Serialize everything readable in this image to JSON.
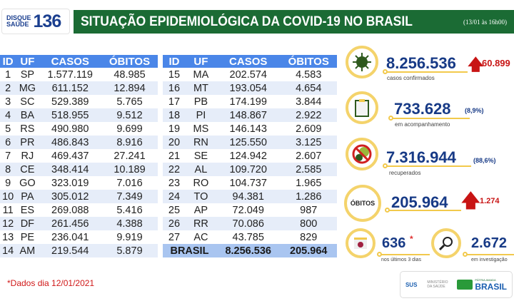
{
  "logo": {
    "line1": "DISQUE",
    "line2": "SAÚDE",
    "number": "136"
  },
  "header": {
    "title": "SITUAÇÃO EPIDEMIOLÓGICA DA COVID-19 NO BRASIL",
    "date": "(13/01 às 16h00)"
  },
  "table": {
    "columns": [
      "ID",
      "UF",
      "CASOS",
      "ÓBITOS"
    ],
    "rows_left": [
      [
        "1",
        "SP",
        "1.577.119",
        "48.985"
      ],
      [
        "2",
        "MG",
        "611.152",
        "12.894"
      ],
      [
        "3",
        "SC",
        "529.389",
        "5.765"
      ],
      [
        "4",
        "BA",
        "518.955",
        "9.512"
      ],
      [
        "5",
        "RS",
        "490.980",
        "9.699"
      ],
      [
        "6",
        "PR",
        "486.843",
        "8.916"
      ],
      [
        "7",
        "RJ",
        "469.437",
        "27.241"
      ],
      [
        "8",
        "CE",
        "348.414",
        "10.189"
      ],
      [
        "9",
        "GO",
        "323.019",
        "7.016"
      ],
      [
        "10",
        "PA",
        "305.012",
        "7.349"
      ],
      [
        "11",
        "ES",
        "269.088",
        "5.416"
      ],
      [
        "12",
        "DF",
        "261.456",
        "4.388"
      ],
      [
        "13",
        "PE",
        "236.041",
        "9.919"
      ],
      [
        "14",
        "AM",
        "219.544",
        "5.879"
      ]
    ],
    "rows_right": [
      [
        "15",
        "MA",
        "202.574",
        "4.583"
      ],
      [
        "16",
        "MT",
        "193.054",
        "4.654"
      ],
      [
        "17",
        "PB",
        "174.199",
        "3.844"
      ],
      [
        "18",
        "PI",
        "148.867",
        "2.922"
      ],
      [
        "19",
        "MS",
        "146.143",
        "2.609"
      ],
      [
        "20",
        "RN",
        "125.550",
        "3.125"
      ],
      [
        "21",
        "SE",
        "124.942",
        "2.607"
      ],
      [
        "22",
        "AL",
        "109.720",
        "2.585"
      ],
      [
        "23",
        "RO",
        "104.737",
        "1.965"
      ],
      [
        "24",
        "TO",
        "94.381",
        "1.286"
      ],
      [
        "25",
        "AP",
        "72.049",
        "987"
      ],
      [
        "26",
        "RR",
        "70.086",
        "800"
      ],
      [
        "27",
        "AC",
        "43.785",
        "829"
      ]
    ],
    "total": {
      "label": "BRASIL",
      "casos": "8.256.536",
      "obitos": "205.964"
    }
  },
  "stats": {
    "confirmed": {
      "value": "8.256.536",
      "increase": "60.899",
      "label": "casos confirmados",
      "icon": "virus-icon"
    },
    "monitoring": {
      "value": "733.628",
      "pct": "(8,9%)",
      "label": "em acompanhamento",
      "icon": "clipboard-icon"
    },
    "recovered": {
      "value": "7.316.944",
      "pct": "(88,6%)",
      "label": "recuperados",
      "icon": "no-virus-icon"
    },
    "deaths": {
      "badge": "ÓBITOS",
      "value": "205.964",
      "increase": "1.274"
    },
    "recent": {
      "value": "636",
      "mark": "*",
      "label": "nos últimos 3 dias",
      "icon": "calendar-icon"
    },
    "investigation": {
      "value": "2.672",
      "label": "em investigação",
      "icon": "magnifier-icon"
    }
  },
  "footnote": "*Dados dia 12/01/2021",
  "gov": {
    "sus": "SUS",
    "ministry": "MINISTÉRIO DA SAÚDE",
    "brand_small": "PÁTRIA AMADA",
    "brand": "BRASIL"
  },
  "colors": {
    "green": "#1b6b34",
    "blue": "#4a86e8",
    "navy": "#173a86",
    "red": "#c81414",
    "gold": "#f4d36b"
  }
}
